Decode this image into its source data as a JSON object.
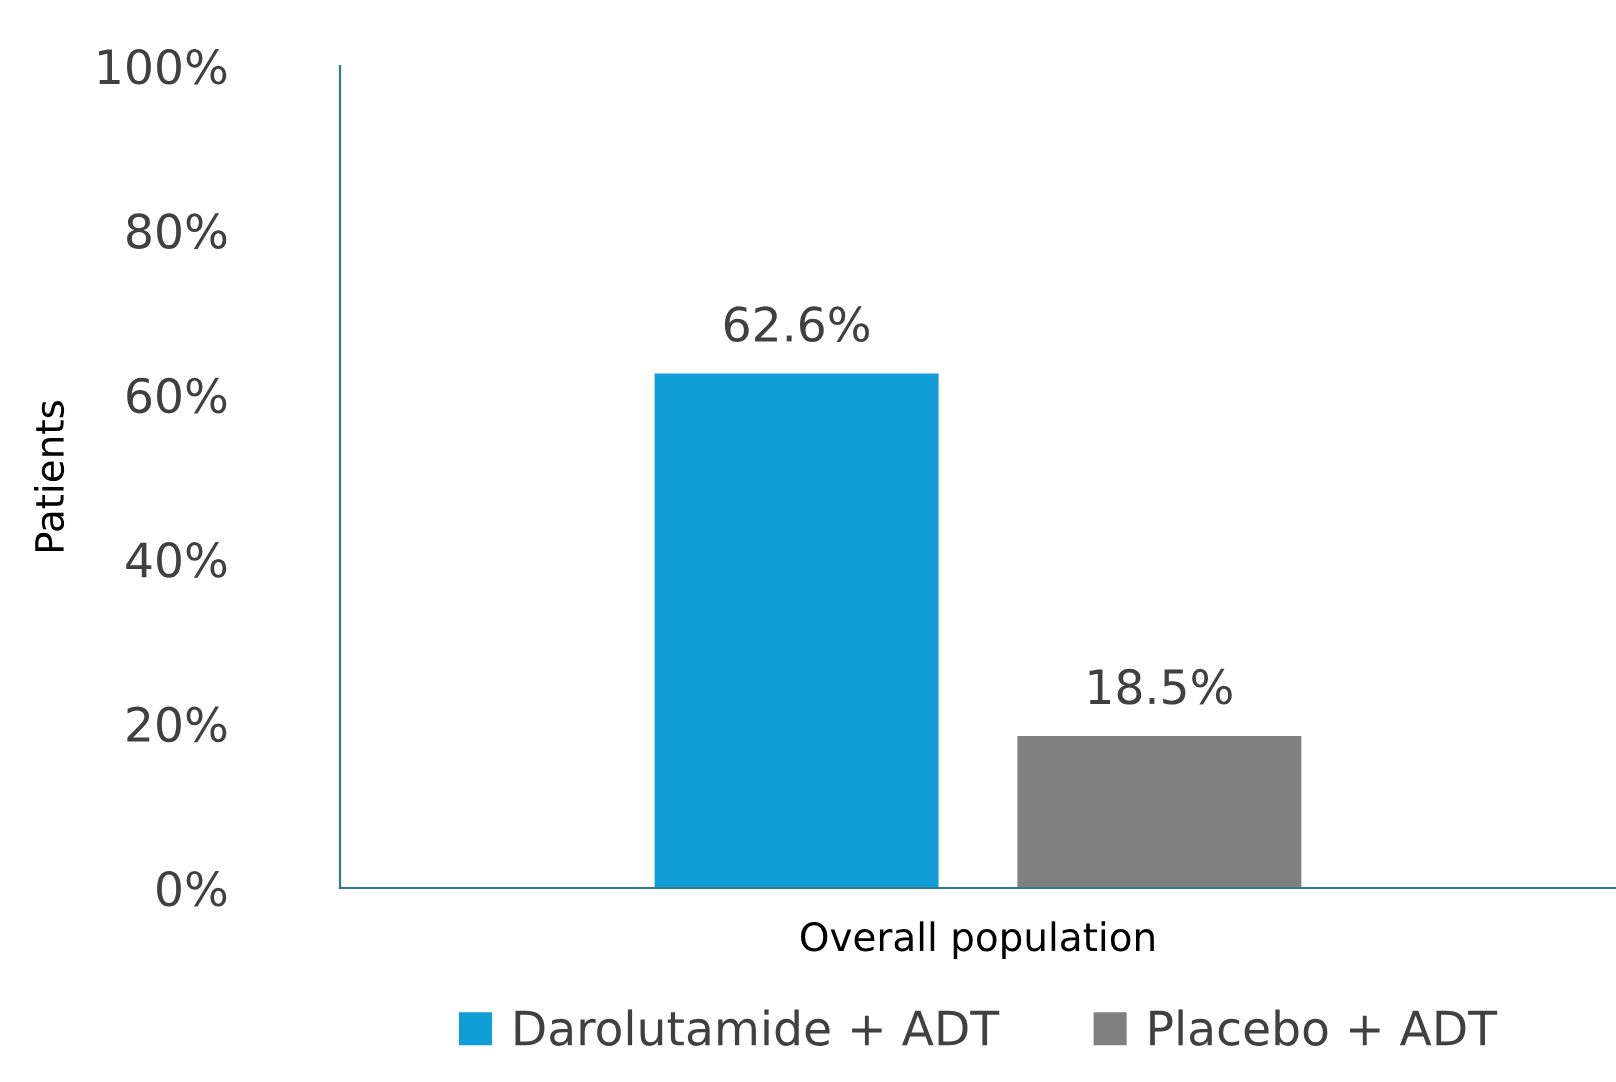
{
  "chart_data": {
    "type": "bar",
    "ylabel": "Patients",
    "categories": [
      "Overall population"
    ],
    "series": [
      {
        "name": "Darolutamide + ADT",
        "color": "#119dd8",
        "values": [
          62.6
        ],
        "value_labels": [
          "62.6%"
        ]
      },
      {
        "name": "Placebo + ADT",
        "color": "#808080",
        "values": [
          18.5
        ],
        "value_labels": [
          "18.5%"
        ]
      }
    ],
    "ylim": [
      0,
      100
    ],
    "yticks": [
      {
        "value": 0,
        "label": "0%"
      },
      {
        "value": 20,
        "label": "20%"
      },
      {
        "value": 40,
        "label": "40%"
      },
      {
        "value": 60,
        "label": "60%"
      },
      {
        "value": 80,
        "label": "80%"
      },
      {
        "value": 100,
        "label": "100%"
      }
    ],
    "grid": false,
    "legend": "bottom"
  }
}
